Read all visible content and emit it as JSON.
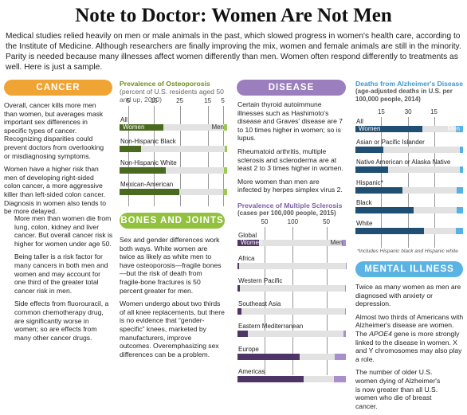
{
  "header": {
    "title": "Note to Doctor: Women Are Not Men",
    "intro": "Medical studies relied heavily on men or male animals in the past, which slowed progress in women's health care, according to the Institute of Medicine. Although researchers are finally improving the mix, women and female animals are still in the minority. Parity is needed because many illnesses affect women differently than men. Women often respond differently to treatments as well. Here is just a sample."
  },
  "colors": {
    "cancer": "#f0a434",
    "bones": "#92c13e",
    "disease": "#9b7ebd",
    "mental": "#5bb3e3",
    "osteo_women": "#4a6a1f",
    "osteo_men": "#9bc94b",
    "ms_women": "#4f3466",
    "ms_men": "#a88fcb",
    "alz_women": "#1f4f72",
    "alz_men": "#57b1e2"
  },
  "sections": {
    "cancer": {
      "label": "CANCER",
      "paras": [
        "Overall, cancer kills more men than women, but averages mask important sex differences in specific types of cancer. Recognizing disparities could prevent doctors from overlooking or misdiagnosing symptoms.",
        "Women have a higher risk than men of developing right-sided colon cancer, a more aggressive killer than left-sided colon cancer. Diagnosis in women also tends to be more delayed.",
        "More men than women die from lung, colon, kidney and liver cancer. But overall cancer risk is higher for women under age 50.",
        "Being taller is a risk factor for many cancers in both men and women and may account for one third of the greater total cancer risk in men.",
        "Side effects from fluorouracil, a common chemotherapy drug, are significantly worse in women; so are effects from many other cancer drugs."
      ]
    },
    "bones": {
      "label": "BONES AND JOINTS",
      "paras": [
        "Sex and gender differences work both ways. White women are twice as likely as white men to have osteoporosis—fragile bones—but the risk of death from fragile-bone fractures is 50 percent greater for men.",
        "Women undergo about two thirds of all knee replacements, but there is no evidence that “gender-specific” knees, marketed by manufacturers, improve outcomes. Overemphasizing sex differences can be a problem."
      ]
    },
    "disease": {
      "label": "DISEASE",
      "paras": [
        "Certain thyroid autoimmune illnesses such as Hashimoto's disease and Graves' disease are 7 to 10 times higher in women; so is lupus.",
        "Rheumatoid arthritis, multiple sclerosis and scleroderma are at least 2 to 3 times higher in women.",
        "More women than men are infected by herpes simplex virus 2."
      ]
    },
    "mental": {
      "label": "MENTAL ILLNESS",
      "paras": [
        "Twice as many women as men are diagnosed with anxiety or depression.",
        "Almost two thirds of Americans with Alzheimer's disease are women. The ",
        " gene is more strongly linked to the disease in women. X and Y chromosomes may also play a role.",
        "The number of older U.S. women dying of Alzheimer's is now greater than all U.S. women who die of breast cancer."
      ],
      "gene": "APOE4"
    }
  },
  "charts": {
    "osteo": {
      "title": "Prevalence of Osteoporosis",
      "subtitle": "(percent of U.S. residents aged 50 and up, 2010)",
      "ticks": [
        "5",
        "15",
        "25",
        "15",
        "5"
      ],
      "rows": [
        {
          "label": "All",
          "women": "Women",
          "men": "Men",
          "w": 16,
          "m": 4
        },
        {
          "label": "Non-Hispanic Black",
          "w": 8,
          "m": 3
        },
        {
          "label": "Non-Hispanic White",
          "w": 17,
          "m": 4
        },
        {
          "label": "Mexican-American",
          "w": 22,
          "m": 5
        }
      ]
    },
    "ms": {
      "title": "Prevalence of Multiple Sclerosis",
      "subtitle": "(cases per 100,000 people, 2015)",
      "ticks": [
        "50",
        "100",
        "50"
      ],
      "rows": [
        {
          "label": "Global",
          "women": "Women",
          "men": "Men",
          "w": 45,
          "m": 20
        },
        {
          "label": "Africa",
          "w": 4,
          "m": 2
        },
        {
          "label": "Western Pacific",
          "w": 5,
          "m": 3
        },
        {
          "label": "Southeast Asia",
          "w": 9,
          "m": 5
        },
        {
          "label": "Eastern Mediterranean",
          "w": 22,
          "m": 12
        },
        {
          "label": "Europe",
          "w": 132,
          "m": 60
        },
        {
          "label": "Americas",
          "w": 140,
          "m": 66
        }
      ]
    },
    "alz": {
      "title": "Deaths from Alzheimer's Disease",
      "subtitle": "(age-adjusted deaths in U.S. per 100,000 people, 2014)",
      "ticks": [
        "15",
        "30",
        "15"
      ],
      "rows": [
        {
          "label": "All",
          "women": "Women",
          "men": "Men",
          "w": 31,
          "m": 20
        },
        {
          "label": "Asian or Pacific Islander",
          "w": 13,
          "m": 9
        },
        {
          "label": "Native American or Alaska Native",
          "w": 15,
          "m": 10
        },
        {
          "label": "Hispanic*",
          "w": 22,
          "m": 17
        },
        {
          "label": "Black",
          "w": 27,
          "m": 18
        },
        {
          "label": "White",
          "w": 32,
          "m": 21
        }
      ],
      "footnote": "*Includes Hispanic black and Hispanic white"
    }
  }
}
